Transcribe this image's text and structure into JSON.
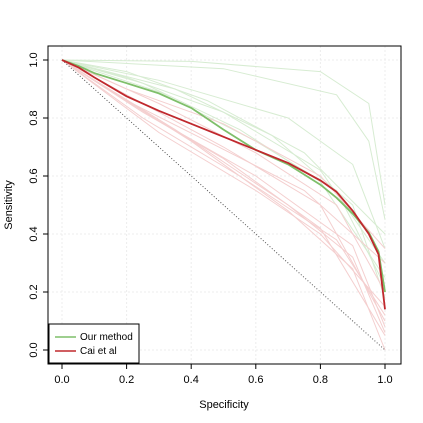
{
  "chart_data": {
    "type": "line",
    "xlabel": "Specificity",
    "ylabel": "Sensitivity",
    "xlim": [
      0,
      1
    ],
    "ylim": [
      0,
      1
    ],
    "x_ticks": [
      "0.0",
      "0.2",
      "0.4",
      "0.6",
      "0.8",
      "1.0"
    ],
    "y_ticks": [
      "0.0",
      "0.2",
      "0.4",
      "0.6",
      "0.8",
      "1.0"
    ],
    "grid": true,
    "legend_position": "bottom-left",
    "diagonal_reference": {
      "x": [
        0,
        1
      ],
      "y": [
        1,
        0
      ],
      "color": "#555555",
      "style": "dotted"
    },
    "series": [
      {
        "name": "Our method",
        "color": "#7fbf6a",
        "x": [
          0,
          0.05,
          0.1,
          0.2,
          0.3,
          0.4,
          0.5,
          0.6,
          0.7,
          0.8,
          0.85,
          0.9,
          0.95,
          0.98,
          1.0
        ],
        "y": [
          1.0,
          0.98,
          0.955,
          0.92,
          0.885,
          0.835,
          0.76,
          0.69,
          0.64,
          0.57,
          0.525,
          0.47,
          0.405,
          0.34,
          0.2
        ]
      },
      {
        "name": "Cai et al",
        "color": "#c0282d",
        "x": [
          0,
          0.05,
          0.1,
          0.2,
          0.3,
          0.4,
          0.5,
          0.6,
          0.7,
          0.8,
          0.85,
          0.9,
          0.95,
          0.98,
          1.0
        ],
        "y": [
          1.0,
          0.975,
          0.94,
          0.875,
          0.825,
          0.78,
          0.735,
          0.69,
          0.645,
          0.585,
          0.545,
          0.48,
          0.4,
          0.33,
          0.14
        ]
      }
    ],
    "background_curves": [
      {
        "color": "#d7ecd2",
        "x": [
          0,
          0.4,
          0.8,
          0.95,
          1.0
        ],
        "y": [
          1.0,
          0.995,
          0.96,
          0.85,
          0.5
        ]
      },
      {
        "color": "#d7ecd2",
        "x": [
          0,
          0.5,
          0.85,
          0.95,
          1.0
        ],
        "y": [
          1.0,
          0.97,
          0.88,
          0.72,
          0.45
        ]
      },
      {
        "color": "#d7ecd2",
        "x": [
          0,
          0.3,
          0.7,
          0.9,
          1.0
        ],
        "y": [
          1.0,
          0.93,
          0.8,
          0.64,
          0.35
        ]
      },
      {
        "color": "#d7ecd2",
        "x": [
          0,
          0.2,
          0.5,
          0.8,
          1.0
        ],
        "y": [
          1.0,
          0.94,
          0.82,
          0.62,
          0.3
        ]
      },
      {
        "color": "#d7ecd2",
        "x": [
          0,
          0.25,
          0.55,
          0.8,
          1.0
        ],
        "y": [
          1.0,
          0.92,
          0.76,
          0.58,
          0.25
        ]
      },
      {
        "color": "#d7ecd2",
        "x": [
          0,
          0.3,
          0.6,
          0.85,
          1.0
        ],
        "y": [
          1.0,
          0.89,
          0.72,
          0.55,
          0.22
        ]
      },
      {
        "color": "#d7ecd2",
        "x": [
          0,
          0.2,
          0.45,
          0.75,
          1.0
        ],
        "y": [
          1.0,
          0.96,
          0.86,
          0.68,
          0.4
        ]
      },
      {
        "color": "#d7ecd2",
        "x": [
          0,
          0.35,
          0.65,
          0.9,
          1.0
        ],
        "y": [
          1.0,
          0.9,
          0.74,
          0.5,
          0.18
        ]
      },
      {
        "color": "#f4cfcf",
        "x": [
          0,
          0.2,
          0.5,
          0.8,
          1.0
        ],
        "y": [
          1.0,
          0.88,
          0.7,
          0.5,
          0.1
        ]
      },
      {
        "color": "#f4cfcf",
        "x": [
          0,
          0.3,
          0.6,
          0.85,
          1.0
        ],
        "y": [
          1.0,
          0.85,
          0.68,
          0.5,
          0.2
        ]
      },
      {
        "color": "#f4cfcf",
        "x": [
          0,
          0.25,
          0.5,
          0.8,
          1.0
        ],
        "y": [
          1.0,
          0.82,
          0.66,
          0.42,
          0.05
        ]
      },
      {
        "color": "#f4cfcf",
        "x": [
          0,
          0.2,
          0.45,
          0.75,
          1.0
        ],
        "y": [
          1.0,
          0.86,
          0.72,
          0.55,
          0.3
        ]
      },
      {
        "color": "#f4cfcf",
        "x": [
          0,
          0.3,
          0.6,
          0.9,
          1.0
        ],
        "y": [
          1.0,
          0.79,
          0.6,
          0.36,
          0.08
        ]
      },
      {
        "color": "#f4cfcf",
        "x": [
          0,
          0.25,
          0.55,
          0.85,
          1.0
        ],
        "y": [
          1.0,
          0.8,
          0.6,
          0.38,
          0.12
        ]
      },
      {
        "color": "#f4cfcf",
        "x": [
          0,
          0.3,
          0.6,
          0.8,
          1.0
        ],
        "y": [
          1.0,
          0.75,
          0.55,
          0.4,
          0.15
        ]
      },
      {
        "color": "#f4cfcf",
        "x": [
          0,
          0.35,
          0.7,
          0.9,
          1.0
        ],
        "y": [
          1.0,
          0.76,
          0.5,
          0.32,
          0.06
        ]
      },
      {
        "color": "#f4cfcf",
        "x": [
          0,
          0.2,
          0.5,
          0.8,
          1.0
        ],
        "y": [
          1.0,
          0.9,
          0.78,
          0.6,
          0.35
        ]
      },
      {
        "color": "#f4cfcf",
        "x": [
          0,
          0.4,
          0.7,
          0.9,
          1.0
        ],
        "y": [
          1.0,
          0.72,
          0.48,
          0.28,
          0.0
        ]
      }
    ]
  }
}
